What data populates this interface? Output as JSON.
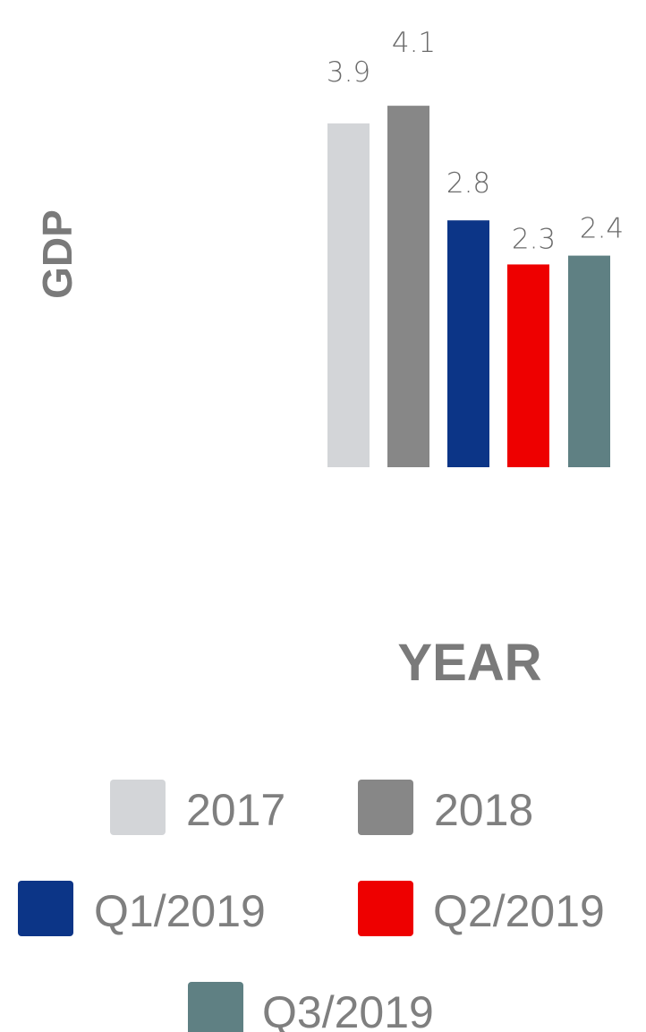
{
  "chart_data": {
    "type": "bar",
    "title": "",
    "xlabel": "YEAR",
    "ylabel": "GDP",
    "categories": [
      "2017",
      "2018",
      "Q1/2019",
      "Q2/2019",
      "Q3/2019"
    ],
    "values": [
      3.9,
      4.1,
      2.8,
      2.3,
      2.4
    ],
    "value_labels": [
      "3.9",
      "4.1",
      "2.8",
      "2.3",
      "2.4"
    ],
    "colors": [
      "#d3d5d8",
      "#878787",
      "#0c3587",
      "#ee0000",
      "#5f8083"
    ],
    "ylim": [
      0,
      4.1
    ],
    "grid": false,
    "legend_position": "bottom",
    "legend": [
      {
        "label": "2017",
        "color": "#d3d5d8"
      },
      {
        "label": "2018",
        "color": "#878787"
      },
      {
        "label": "Q1/2019",
        "color": "#0c3587"
      },
      {
        "label": "Q2/2019",
        "color": "#ee0000"
      },
      {
        "label": "Q3/2019",
        "color": "#5f8083"
      }
    ]
  }
}
